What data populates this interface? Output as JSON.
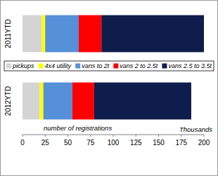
{
  "chart_data": {
    "type": "bar",
    "orientation": "horizontal",
    "stacked": true,
    "categories": [
      "2011YTD",
      "2012YTD"
    ],
    "series": [
      {
        "name": "pickups",
        "color": "#d4d4d4",
        "values": [
          21,
          19
        ]
      },
      {
        "name": "4x4 utility",
        "color": "#ffff00",
        "values": [
          4,
          4
        ]
      },
      {
        "name": "vans to 2t",
        "color": "#5590d8",
        "values": [
          37,
          32
        ]
      },
      {
        "name": "vans 2 to 2.5t",
        "color": "#ff0000",
        "values": [
          25,
          24
        ]
      },
      {
        "name": "vans 2.5 to 3.5t",
        "color": "#0f1d4c",
        "values": [
          113,
          107
        ]
      }
    ],
    "x_label": "number of registrations",
    "annotations": [
      "Thousands"
    ],
    "xlim": [
      0,
      200
    ],
    "xticks": [
      0,
      25,
      50,
      75,
      100,
      125,
      150,
      175,
      200
    ],
    "grid": false,
    "legend": "center"
  }
}
